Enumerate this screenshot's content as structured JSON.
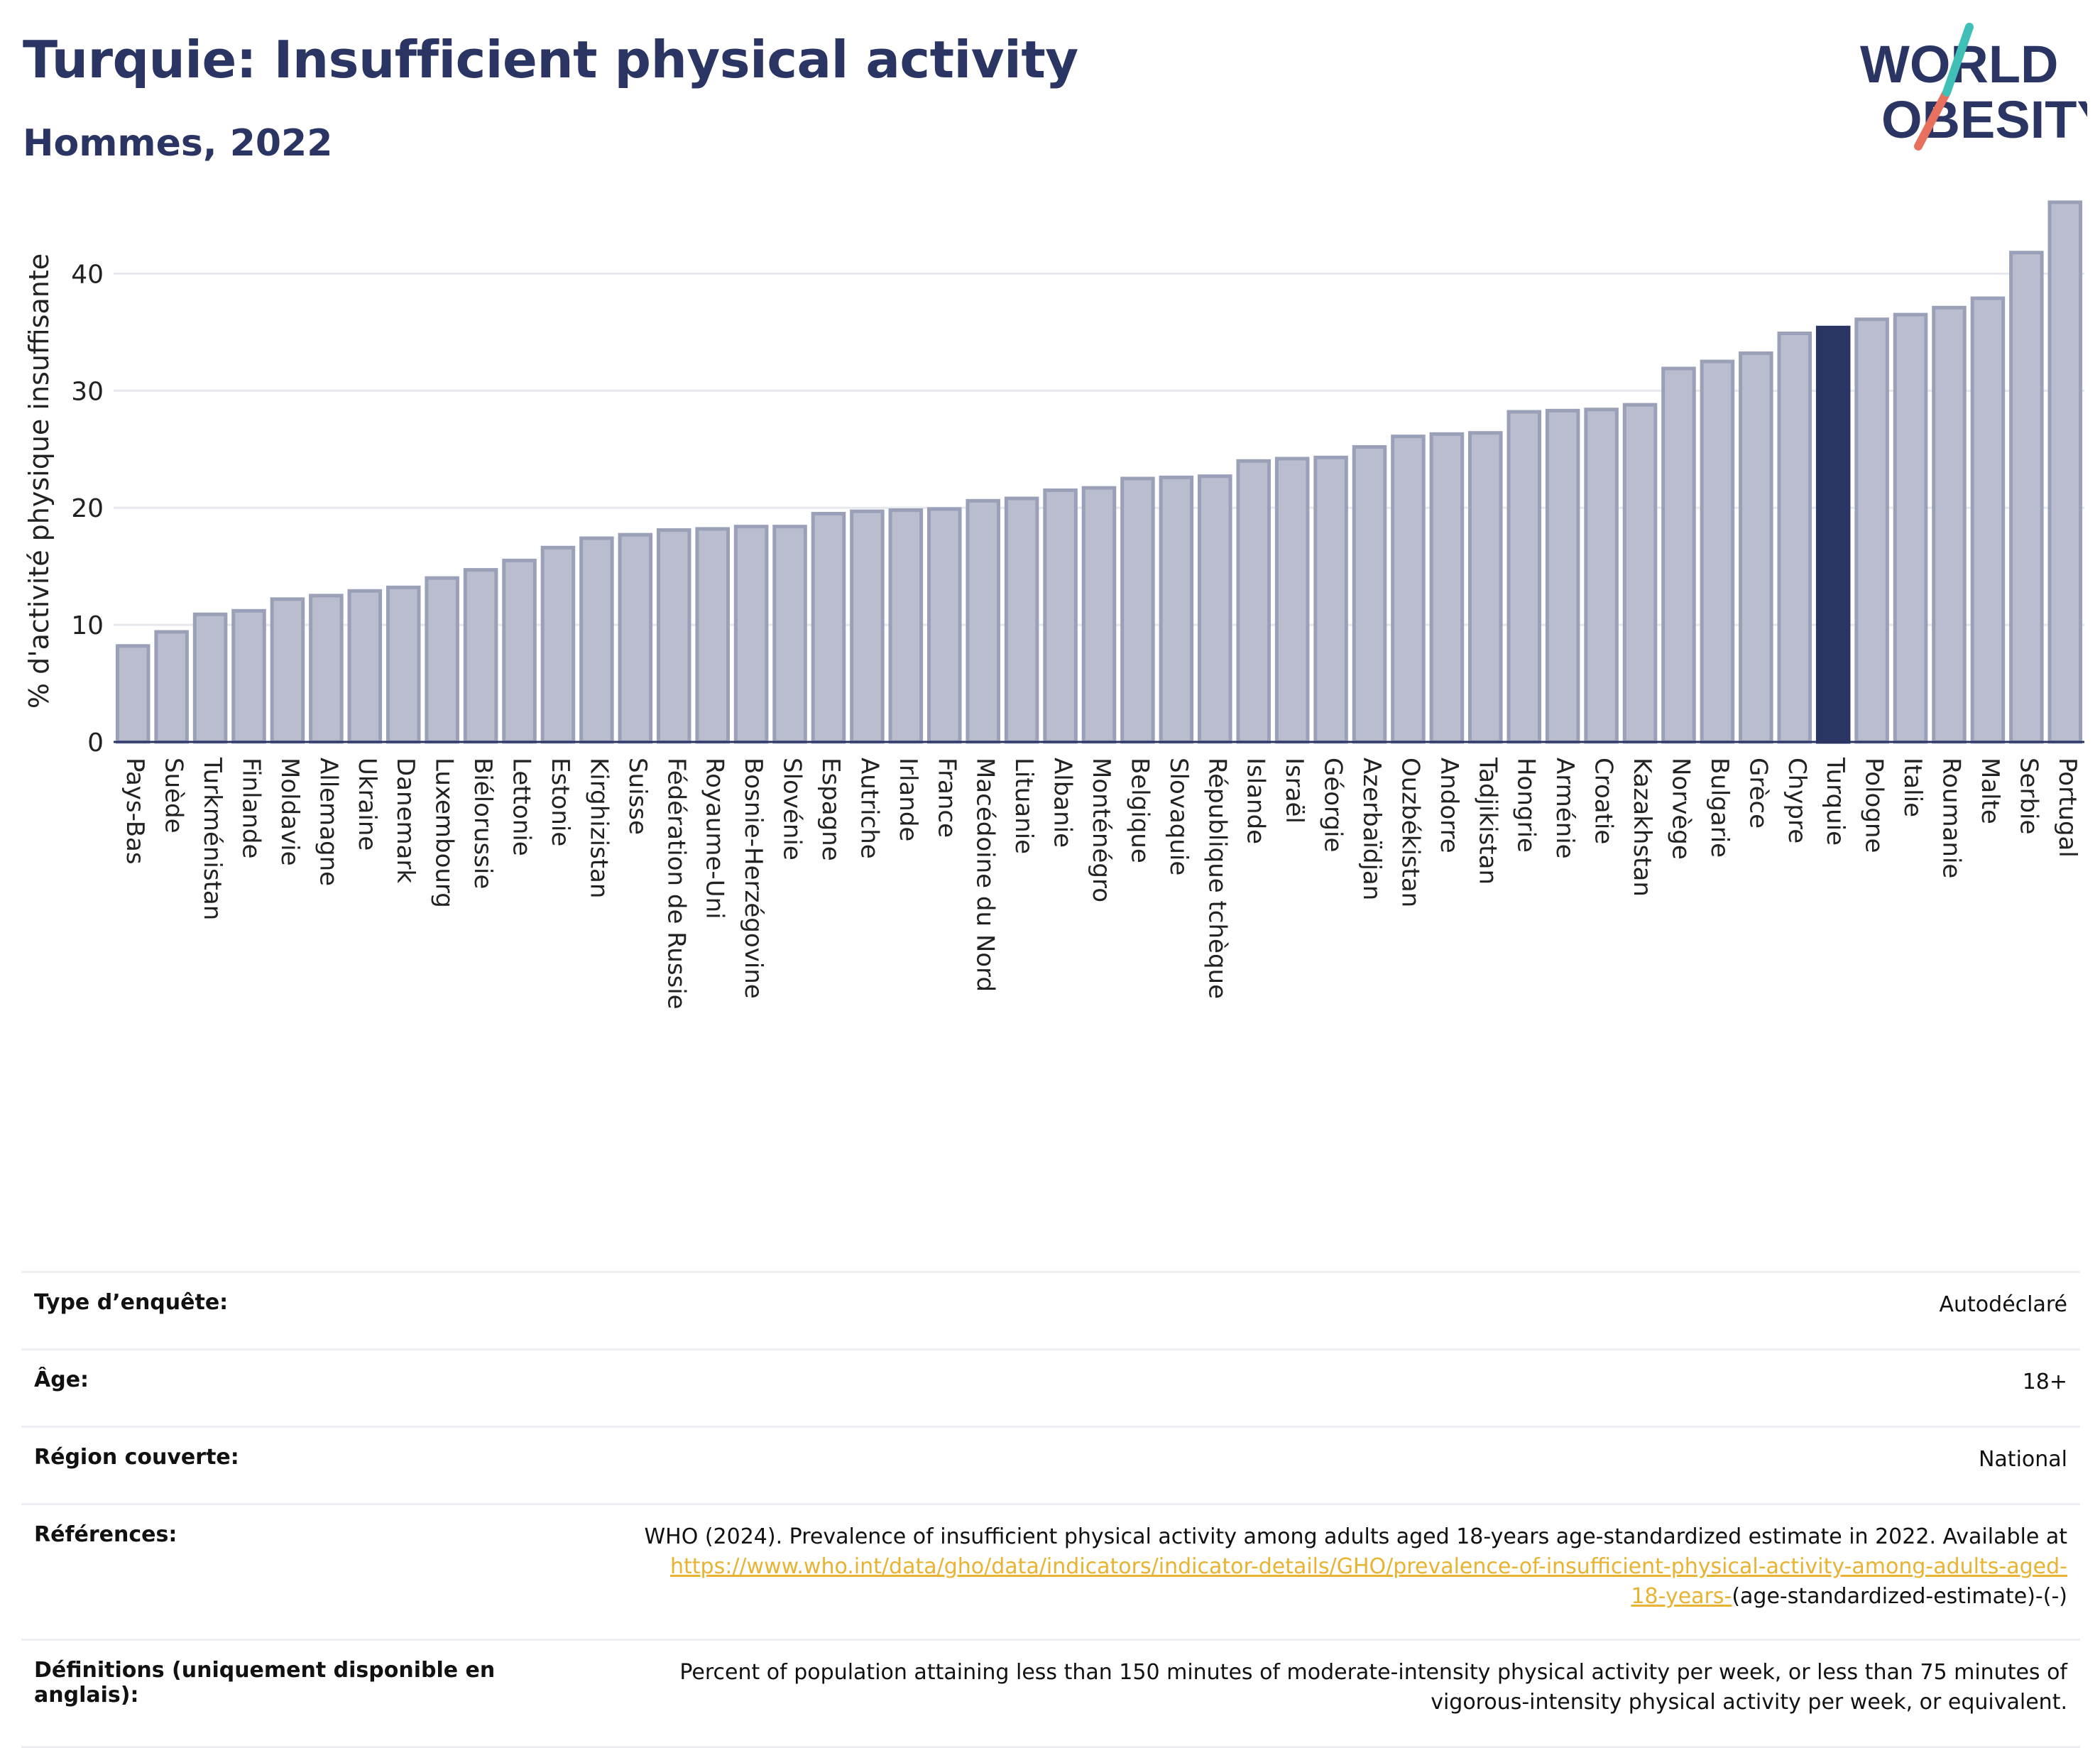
{
  "header": {
    "title": "Turquie: Insufficient physical activity",
    "subtitle": "Hommes, 2022"
  },
  "logo": {
    "line1": "WORLD",
    "line2": "OBESITY"
  },
  "colors": {
    "title": "#2b3563",
    "bar_default": "#b9bdcd",
    "bar_border": "#9aa0b8",
    "bar_highlight": "#2b3563",
    "link": "#e9b332",
    "logo_teal": "#3fbfb5",
    "logo_coral": "#e8705f"
  },
  "chart_data": {
    "type": "bar",
    "title": "Turquie: Insufficient physical activity",
    "subtitle": "Hommes, 2022",
    "ylabel": "% d'activité physique insuffisante",
    "xlabel": "",
    "ylim": [
      0,
      47
    ],
    "yticks": [
      0,
      10,
      20,
      30,
      40
    ],
    "grid": true,
    "highlight": "Turquie",
    "categories": [
      "Pays-Bas",
      "Suède",
      "Turkménistan",
      "Finlande",
      "Moldavie",
      "Allemagne",
      "Ukraine",
      "Danemark",
      "Luxembourg",
      "Biélorussie",
      "Lettonie",
      "Estonie",
      "Kirghizistan",
      "Suisse",
      "Fédération de Russie",
      "Royaume-Uni",
      "Bosnie-Herzégovine",
      "Slovénie",
      "Espagne",
      "Autriche",
      "Irlande",
      "France",
      "Macédoine du Nord",
      "Lituanie",
      "Albanie",
      "Monténégro",
      "Belgique",
      "Slovaquie",
      "République tchèque",
      "Islande",
      "Israël",
      "Géorgie",
      "Azerbaïdjan",
      "Ouzbékistan",
      "Andorre",
      "Tadjikistan",
      "Hongrie",
      "Arménie",
      "Croatie",
      "Kazakhstan",
      "Norvège",
      "Bulgarie",
      "Grèce",
      "Chypre",
      "Turquie",
      "Pologne",
      "Italie",
      "Roumanie",
      "Malte",
      "Serbie",
      "Portugal"
    ],
    "values": [
      8.2,
      9.4,
      10.9,
      11.2,
      12.2,
      12.5,
      12.9,
      13.2,
      14.0,
      14.7,
      15.5,
      16.6,
      17.4,
      17.7,
      18.1,
      18.2,
      18.4,
      18.4,
      19.5,
      19.7,
      19.8,
      19.9,
      20.6,
      20.8,
      21.5,
      21.7,
      22.5,
      22.6,
      22.7,
      24.0,
      24.2,
      24.3,
      25.2,
      26.1,
      26.3,
      26.4,
      28.2,
      28.3,
      28.4,
      28.8,
      31.9,
      32.5,
      33.2,
      34.9,
      35.4,
      36.1,
      36.5,
      37.1,
      37.9,
      41.8,
      46.1
    ]
  },
  "meta": {
    "rows": [
      {
        "label": "Type d’enquête:",
        "value": "Autodéclaré"
      },
      {
        "label": "Âge:",
        "value": "18+"
      },
      {
        "label": "Région couverte:",
        "value": "National"
      }
    ],
    "references": {
      "label": "Références:",
      "text": "WHO (2024). Prevalence of insufficient physical activity among adults aged 18-years age-standardized estimate in 2022. Available at",
      "link1": "https://www.who.int/data/gho/data/indicators/indicator-details/GHO/prevalence-of-insufficient-physical-activity-among-adults-aged-",
      "link2": "18-years-",
      "suffix": "(age-standardized-estimate)-(-)"
    },
    "definitions": {
      "label": "Définitions (uniquement disponible en anglais):",
      "line1": "Percent of population attaining less than 150 minutes of moderate-intensity physical activity per week, or less than 75 minutes of",
      "line2": "vigorous-intensity physical activity per week, or equivalent."
    }
  }
}
